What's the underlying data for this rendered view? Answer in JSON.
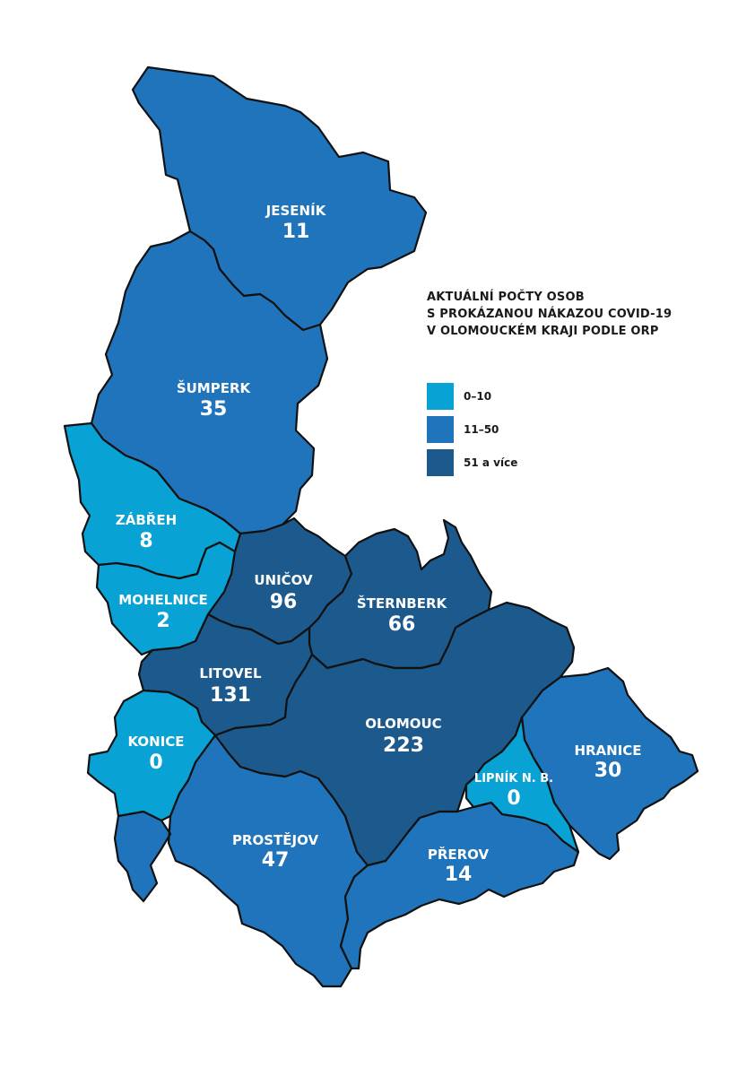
{
  "colors": {
    "low": "#08a2d4",
    "mid": "#1f74bb",
    "high": "#1c5a8d",
    "border": "#111111",
    "label": "#ffffff"
  },
  "legend": {
    "title_lines": [
      "AKTUÁLNÍ POČTY OSOB",
      "S PROKÁZANOU NÁKAZOU COVID-19",
      "V OLOMOUCKÉM KRAJI PODLE ORP"
    ],
    "items": [
      {
        "label": "0–10",
        "color": "#08a2d4"
      },
      {
        "label": "11–50",
        "color": "#1f74bb"
      },
      {
        "label": "51 a více",
        "color": "#1c5a8d"
      }
    ]
  },
  "regions": [
    {
      "id": "jesenik",
      "name": "JESENÍK",
      "value": 11,
      "category": "mid"
    },
    {
      "id": "sumperk",
      "name": "ŠUMPERK",
      "value": 35,
      "category": "mid"
    },
    {
      "id": "zabreh",
      "name": "ZÁBŘEH",
      "value": 8,
      "category": "low"
    },
    {
      "id": "mohelnice",
      "name": "MOHELNICE",
      "value": 2,
      "category": "low"
    },
    {
      "id": "unicov",
      "name": "UNIČOV",
      "value": 96,
      "category": "high"
    },
    {
      "id": "sternberk",
      "name": "ŠTERNBERK",
      "value": 66,
      "category": "high"
    },
    {
      "id": "litovel",
      "name": "LITOVEL",
      "value": 131,
      "category": "high"
    },
    {
      "id": "olomouc",
      "name": "OLOMOUC",
      "value": 223,
      "category": "high"
    },
    {
      "id": "konice",
      "name": "KONICE",
      "value": 0,
      "category": "low"
    },
    {
      "id": "hranice",
      "name": "HRANICE",
      "value": 30,
      "category": "mid"
    },
    {
      "id": "lipnik",
      "name": "LIPNÍK N. B.",
      "value": 0,
      "category": "low"
    },
    {
      "id": "prostejov",
      "name": "PROSTĚJOV",
      "value": 47,
      "category": "mid"
    },
    {
      "id": "prerov",
      "name": "PŘEROV",
      "value": 14,
      "category": "mid"
    }
  ]
}
